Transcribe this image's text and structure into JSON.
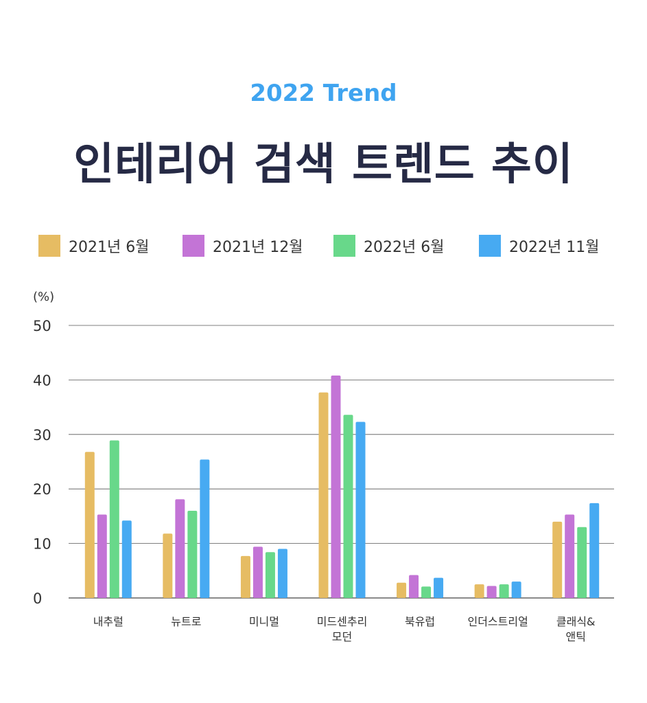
{
  "header": {
    "subtitle": "2022 Trend",
    "title": "인테리어 검색 트렌드 추이"
  },
  "chart_data": {
    "type": "bar",
    "y_unit": "(%)",
    "ylim": [
      0,
      50
    ],
    "yticks": [
      "0",
      "10",
      "20",
      "30",
      "40",
      "50"
    ],
    "grid": true,
    "legend_position": "top",
    "categories": [
      [
        "내추럴"
      ],
      [
        "뉴트로"
      ],
      [
        "미니멀"
      ],
      [
        "미드센추리",
        "모던"
      ],
      [
        "북유럽"
      ],
      [
        "인더스트리얼"
      ],
      [
        "클래식&",
        "앤틱"
      ]
    ],
    "series": [
      {
        "name": "2021년 6월",
        "color": "#e6bc63",
        "values": [
          26.8,
          11.8,
          7.7,
          37.7,
          2.8,
          2.5,
          14.0
        ]
      },
      {
        "name": "2021년 12월",
        "color": "#c374d6",
        "values": [
          15.3,
          18.1,
          9.4,
          40.8,
          4.2,
          2.2,
          15.3
        ]
      },
      {
        "name": "2022년 6월",
        "color": "#68d88a",
        "values": [
          28.9,
          16.0,
          8.4,
          33.6,
          2.1,
          2.5,
          13.0
        ]
      },
      {
        "name": "2022년 11월",
        "color": "#47aaf2",
        "values": [
          14.2,
          25.4,
          9.0,
          32.3,
          3.7,
          3.0,
          17.4
        ]
      }
    ]
  }
}
